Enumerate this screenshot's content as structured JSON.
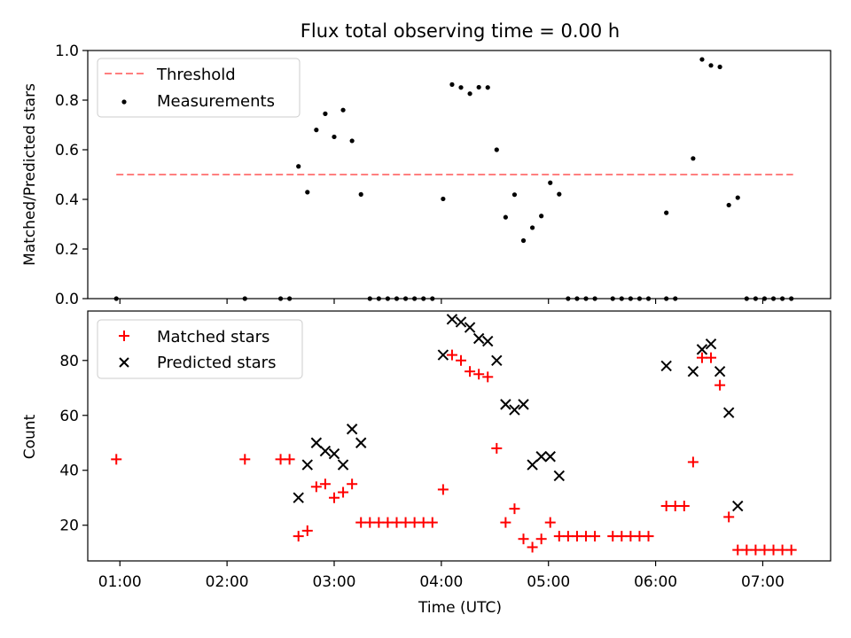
{
  "chart_data": [
    {
      "type": "scatter",
      "title": "Flux total observing time = 0.00 h",
      "xlabel": "",
      "ylabel": "Matched/Predicted stars",
      "xlim": [
        "00:42",
        "07:38"
      ],
      "ylim": [
        0.0,
        1.0
      ],
      "yticks": [
        "0.0",
        "0.2",
        "0.4",
        "0.6",
        "0.8",
        "1.0"
      ],
      "legend_position": "top-left",
      "series": [
        {
          "name": "Threshold",
          "kind": "dashed-line",
          "color": "#ff7f7f",
          "x": [
            "00:58",
            "07:17"
          ],
          "y": [
            0.5,
            0.5
          ]
        },
        {
          "name": "Measurements",
          "kind": "point",
          "color": "#000000",
          "points": [
            [
              "00:58",
              0.0
            ],
            [
              "02:10",
              0.0
            ],
            [
              "02:30",
              0.0
            ],
            [
              "02:35",
              0.0
            ],
            [
              "02:40",
              0.533
            ],
            [
              "02:45",
              0.429
            ],
            [
              "02:50",
              0.68
            ],
            [
              "02:55",
              0.745
            ],
            [
              "03:00",
              0.652
            ],
            [
              "03:05",
              0.76
            ],
            [
              "03:10",
              0.636
            ],
            [
              "03:15",
              0.42
            ],
            [
              "03:20",
              0.0
            ],
            [
              "03:25",
              0.0
            ],
            [
              "03:30",
              0.0
            ],
            [
              "03:35",
              0.0
            ],
            [
              "03:40",
              0.0
            ],
            [
              "03:45",
              0.0
            ],
            [
              "03:50",
              0.0
            ],
            [
              "03:55",
              0.0
            ],
            [
              "04:01",
              0.402
            ],
            [
              "04:06",
              0.863
            ],
            [
              "04:11",
              0.851
            ],
            [
              "04:16",
              0.826
            ],
            [
              "04:21",
              0.852
            ],
            [
              "04:26",
              0.851
            ],
            [
              "04:31",
              0.6
            ],
            [
              "04:36",
              0.328
            ],
            [
              "04:41",
              0.419
            ],
            [
              "04:46",
              0.234
            ],
            [
              "04:51",
              0.286
            ],
            [
              "04:56",
              0.333
            ],
            [
              "05:01",
              0.467
            ],
            [
              "05:06",
              0.421
            ],
            [
              "05:11",
              0.0
            ],
            [
              "05:16",
              0.0
            ],
            [
              "05:21",
              0.0
            ],
            [
              "05:26",
              0.0
            ],
            [
              "05:36",
              0.0
            ],
            [
              "05:41",
              0.0
            ],
            [
              "05:46",
              0.0
            ],
            [
              "05:51",
              0.0
            ],
            [
              "05:56",
              0.0
            ],
            [
              "06:06",
              0.0
            ],
            [
              "06:11",
              0.0
            ],
            [
              "06:06",
              0.346
            ],
            [
              "06:21",
              0.565
            ],
            [
              "06:26",
              0.964
            ],
            [
              "06:31",
              0.94
            ],
            [
              "06:36",
              0.934
            ],
            [
              "06:41",
              0.377
            ],
            [
              "06:46",
              0.407
            ],
            [
              "06:51",
              0.0
            ],
            [
              "06:56",
              0.0
            ],
            [
              "07:01",
              0.0
            ],
            [
              "07:06",
              0.0
            ],
            [
              "07:11",
              0.0
            ],
            [
              "07:16",
              0.0
            ]
          ]
        }
      ]
    },
    {
      "type": "scatter",
      "title": "",
      "xlabel": "Time (UTC)",
      "ylabel": "Count",
      "xlim": [
        "00:42",
        "07:38"
      ],
      "ylim": [
        7,
        98
      ],
      "yticks": [
        "20",
        "40",
        "60",
        "80"
      ],
      "xticks": [
        "01:00",
        "02:00",
        "03:00",
        "04:00",
        "05:00",
        "06:00",
        "07:00"
      ],
      "legend_position": "top-left",
      "series": [
        {
          "name": "Matched stars",
          "kind": "plus",
          "color": "#ff0000",
          "points": [
            [
              "00:58",
              44
            ],
            [
              "02:10",
              44
            ],
            [
              "02:30",
              44
            ],
            [
              "02:35",
              44
            ],
            [
              "02:40",
              16
            ],
            [
              "02:45",
              18
            ],
            [
              "02:50",
              34
            ],
            [
              "02:55",
              35
            ],
            [
              "03:00",
              30
            ],
            [
              "03:05",
              32
            ],
            [
              "03:10",
              35
            ],
            [
              "03:15",
              21
            ],
            [
              "03:20",
              21
            ],
            [
              "03:25",
              21
            ],
            [
              "03:30",
              21
            ],
            [
              "03:35",
              21
            ],
            [
              "03:40",
              21
            ],
            [
              "03:45",
              21
            ],
            [
              "03:50",
              21
            ],
            [
              "03:55",
              21
            ],
            [
              "04:01",
              33
            ],
            [
              "04:06",
              82
            ],
            [
              "04:11",
              80
            ],
            [
              "04:16",
              76
            ],
            [
              "04:21",
              75
            ],
            [
              "04:26",
              74
            ],
            [
              "04:31",
              48
            ],
            [
              "04:36",
              21
            ],
            [
              "04:41",
              26
            ],
            [
              "04:46",
              15
            ],
            [
              "04:51",
              12
            ],
            [
              "04:56",
              15
            ],
            [
              "05:01",
              21
            ],
            [
              "05:06",
              16
            ],
            [
              "05:11",
              16
            ],
            [
              "05:16",
              16
            ],
            [
              "05:21",
              16
            ],
            [
              "05:26",
              16
            ],
            [
              "05:36",
              16
            ],
            [
              "05:41",
              16
            ],
            [
              "05:46",
              16
            ],
            [
              "05:51",
              16
            ],
            [
              "05:56",
              16
            ],
            [
              "06:06",
              27
            ],
            [
              "06:11",
              27
            ],
            [
              "06:16",
              27
            ],
            [
              "06:21",
              43
            ],
            [
              "06:26",
              81
            ],
            [
              "06:31",
              81
            ],
            [
              "06:36",
              71
            ],
            [
              "06:41",
              23
            ],
            [
              "06:46",
              11
            ],
            [
              "06:51",
              11
            ],
            [
              "06:56",
              11
            ],
            [
              "07:01",
              11
            ],
            [
              "07:06",
              11
            ],
            [
              "07:11",
              11
            ],
            [
              "07:16",
              11
            ]
          ]
        },
        {
          "name": "Predicted stars",
          "kind": "cross",
          "color": "#000000",
          "points": [
            [
              "02:40",
              30
            ],
            [
              "02:45",
              42
            ],
            [
              "02:50",
              50
            ],
            [
              "02:55",
              47
            ],
            [
              "03:00",
              46
            ],
            [
              "03:05",
              42
            ],
            [
              "03:10",
              55
            ],
            [
              "03:15",
              50
            ],
            [
              "04:01",
              82
            ],
            [
              "04:06",
              95
            ],
            [
              "04:11",
              94
            ],
            [
              "04:16",
              92
            ],
            [
              "04:21",
              88
            ],
            [
              "04:26",
              87
            ],
            [
              "04:31",
              80
            ],
            [
              "04:36",
              64
            ],
            [
              "04:41",
              62
            ],
            [
              "04:46",
              64
            ],
            [
              "04:51",
              42
            ],
            [
              "04:56",
              45
            ],
            [
              "05:01",
              45
            ],
            [
              "05:06",
              38
            ],
            [
              "06:06",
              78
            ],
            [
              "06:21",
              76
            ],
            [
              "06:26",
              84
            ],
            [
              "06:31",
              86
            ],
            [
              "06:36",
              76
            ],
            [
              "06:41",
              61
            ],
            [
              "06:46",
              27
            ]
          ]
        }
      ]
    }
  ]
}
